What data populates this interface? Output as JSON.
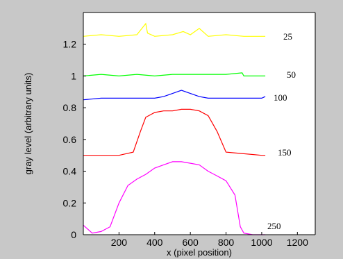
{
  "chart_data": {
    "type": "line",
    "title": "",
    "xlabel": "x (pixel position)",
    "ylabel": "gray level (arbitrary units)",
    "xlim": [
      0,
      1300
    ],
    "ylim": [
      0,
      1.4
    ],
    "xticks": [
      "200",
      "400",
      "600",
      "800",
      "1000",
      "1200"
    ],
    "yticks": [
      "0",
      "0.2",
      "0.4",
      "0.6",
      "0.8",
      "1",
      "1.2"
    ],
    "grid": false,
    "legend": "none",
    "series": [
      {
        "name": "25",
        "color": "#ffff00",
        "x": [
          0,
          100,
          200,
          300,
          350,
          360,
          400,
          500,
          560,
          600,
          650,
          700,
          800,
          900,
          1000,
          1020
        ],
        "y": [
          1.25,
          1.26,
          1.25,
          1.26,
          1.33,
          1.27,
          1.25,
          1.26,
          1.28,
          1.26,
          1.3,
          1.25,
          1.26,
          1.25,
          1.25,
          1.25
        ]
      },
      {
        "name": "50",
        "color": "#00ff00",
        "x": [
          0,
          100,
          200,
          300,
          400,
          500,
          600,
          700,
          800,
          890,
          900,
          1000,
          1020
        ],
        "y": [
          1.0,
          1.01,
          1.0,
          1.01,
          1.0,
          1.01,
          1.01,
          1.01,
          1.01,
          1.02,
          1.0,
          1.0,
          1.0
        ]
      },
      {
        "name": "100",
        "color": "#0000ff",
        "x": [
          0,
          100,
          200,
          300,
          400,
          450,
          500,
          550,
          600,
          650,
          700,
          800,
          900,
          1000,
          1020
        ],
        "y": [
          0.85,
          0.86,
          0.86,
          0.86,
          0.86,
          0.87,
          0.89,
          0.91,
          0.89,
          0.87,
          0.86,
          0.86,
          0.86,
          0.86,
          0.87
        ]
      },
      {
        "name": "150",
        "color": "#ff0000",
        "x": [
          0,
          100,
          200,
          280,
          320,
          350,
          400,
          450,
          500,
          550,
          600,
          650,
          700,
          750,
          800,
          900,
          1000,
          1020
        ],
        "y": [
          0.5,
          0.5,
          0.5,
          0.52,
          0.65,
          0.74,
          0.77,
          0.78,
          0.78,
          0.79,
          0.79,
          0.78,
          0.75,
          0.65,
          0.52,
          0.51,
          0.5,
          0.5
        ]
      },
      {
        "name": "250",
        "color": "#ff00ff",
        "x": [
          0,
          50,
          100,
          150,
          200,
          250,
          300,
          350,
          400,
          450,
          500,
          550,
          600,
          650,
          700,
          750,
          800,
          850,
          880,
          900,
          950,
          1000,
          1020
        ],
        "y": [
          0.06,
          0.01,
          0.02,
          0.05,
          0.2,
          0.31,
          0.35,
          0.38,
          0.42,
          0.44,
          0.46,
          0.46,
          0.45,
          0.44,
          0.4,
          0.37,
          0.34,
          0.25,
          0.05,
          0.01,
          0.0,
          0.0,
          0.0
        ]
      }
    ]
  }
}
